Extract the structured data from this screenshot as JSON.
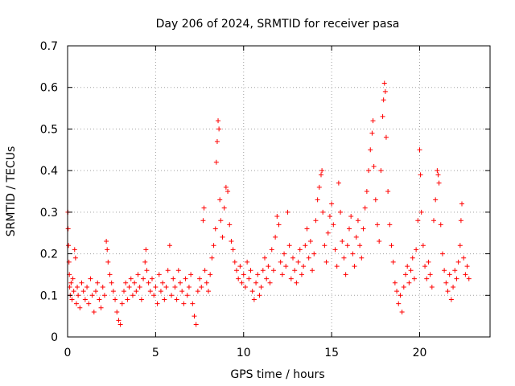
{
  "chart_data": {
    "type": "scatter",
    "title": "Day 206 of 2024, SRMTID for receiver pasa",
    "xlabel": "GPS time / hours",
    "ylabel": "SRMTID / TECUs",
    "xlim": [
      0,
      24
    ],
    "ylim": [
      0,
      0.7
    ],
    "xticks": [
      0,
      5,
      10,
      15,
      20
    ],
    "xtick_labels": [
      "0",
      "5",
      "10",
      "15",
      "20"
    ],
    "yticks": [
      0,
      0.1,
      0.2,
      0.3,
      0.4,
      0.5,
      0.6,
      0.7
    ],
    "ytick_labels": [
      "0",
      "0.1",
      "0.2",
      "0.3",
      "0.4",
      "0.5",
      "0.6",
      "0.7"
    ],
    "grid": true,
    "marker": "+",
    "marker_color": "#ff0000",
    "series": [
      {
        "name": "SRMTID",
        "points": [
          [
            0.02,
            0.3
          ],
          [
            0.03,
            0.26
          ],
          [
            0.05,
            0.22
          ],
          [
            0.08,
            0.18
          ],
          [
            0.1,
            0.15
          ],
          [
            0.12,
            0.12
          ],
          [
            0.15,
            0.1
          ],
          [
            0.2,
            0.13
          ],
          [
            0.25,
            0.09
          ],
          [
            0.3,
            0.14
          ],
          [
            0.35,
            0.11
          ],
          [
            0.4,
            0.21
          ],
          [
            0.45,
            0.19
          ],
          [
            0.5,
            0.08
          ],
          [
            0.55,
            0.12
          ],
          [
            0.6,
            0.1
          ],
          [
            0.7,
            0.07
          ],
          [
            0.8,
            0.13
          ],
          [
            0.9,
            0.11
          ],
          [
            1.0,
            0.09
          ],
          [
            1.1,
            0.12
          ],
          [
            1.2,
            0.08
          ],
          [
            1.3,
            0.14
          ],
          [
            1.4,
            0.1
          ],
          [
            1.5,
            0.06
          ],
          [
            1.6,
            0.11
          ],
          [
            1.7,
            0.13
          ],
          [
            1.8,
            0.09
          ],
          [
            1.9,
            0.07
          ],
          [
            2.0,
            0.12
          ],
          [
            2.1,
            0.1
          ],
          [
            2.2,
            0.23
          ],
          [
            2.25,
            0.21
          ],
          [
            2.3,
            0.18
          ],
          [
            2.4,
            0.15
          ],
          [
            2.5,
            0.13
          ],
          [
            2.6,
            0.11
          ],
          [
            2.7,
            0.09
          ],
          [
            2.8,
            0.06
          ],
          [
            2.9,
            0.04
          ],
          [
            3.0,
            0.03
          ],
          [
            3.1,
            0.08
          ],
          [
            3.2,
            0.11
          ],
          [
            3.3,
            0.13
          ],
          [
            3.4,
            0.09
          ],
          [
            3.5,
            0.12
          ],
          [
            3.6,
            0.14
          ],
          [
            3.7,
            0.1
          ],
          [
            3.8,
            0.13
          ],
          [
            3.9,
            0.11
          ],
          [
            4.0,
            0.15
          ],
          [
            4.1,
            0.12
          ],
          [
            4.2,
            0.09
          ],
          [
            4.3,
            0.14
          ],
          [
            4.4,
            0.18
          ],
          [
            4.45,
            0.21
          ],
          [
            4.5,
            0.16
          ],
          [
            4.6,
            0.13
          ],
          [
            4.7,
            0.11
          ],
          [
            4.8,
            0.14
          ],
          [
            4.9,
            0.1
          ],
          [
            5.0,
            0.12
          ],
          [
            5.1,
            0.08
          ],
          [
            5.2,
            0.15
          ],
          [
            5.3,
            0.11
          ],
          [
            5.4,
            0.13
          ],
          [
            5.5,
            0.09
          ],
          [
            5.6,
            0.12
          ],
          [
            5.7,
            0.16
          ],
          [
            5.8,
            0.22
          ],
          [
            5.9,
            0.1
          ],
          [
            6.0,
            0.14
          ],
          [
            6.1,
            0.12
          ],
          [
            6.2,
            0.09
          ],
          [
            6.3,
            0.16
          ],
          [
            6.4,
            0.13
          ],
          [
            6.5,
            0.11
          ],
          [
            6.6,
            0.08
          ],
          [
            6.7,
            0.14
          ],
          [
            6.8,
            0.1
          ],
          [
            6.9,
            0.12
          ],
          [
            7.0,
            0.15
          ],
          [
            7.1,
            0.08
          ],
          [
            7.2,
            0.05
          ],
          [
            7.3,
            0.03
          ],
          [
            7.4,
            0.11
          ],
          [
            7.5,
            0.14
          ],
          [
            7.6,
            0.12
          ],
          [
            7.7,
            0.28
          ],
          [
            7.75,
            0.31
          ],
          [
            7.8,
            0.16
          ],
          [
            7.9,
            0.13
          ],
          [
            8.0,
            0.11
          ],
          [
            8.1,
            0.15
          ],
          [
            8.2,
            0.19
          ],
          [
            8.3,
            0.22
          ],
          [
            8.4,
            0.26
          ],
          [
            8.45,
            0.42
          ],
          [
            8.5,
            0.47
          ],
          [
            8.55,
            0.52
          ],
          [
            8.6,
            0.5
          ],
          [
            8.65,
            0.33
          ],
          [
            8.7,
            0.28
          ],
          [
            8.8,
            0.24
          ],
          [
            8.9,
            0.31
          ],
          [
            9.0,
            0.36
          ],
          [
            9.1,
            0.35
          ],
          [
            9.2,
            0.27
          ],
          [
            9.3,
            0.23
          ],
          [
            9.4,
            0.21
          ],
          [
            9.5,
            0.18
          ],
          [
            9.6,
            0.16
          ],
          [
            9.7,
            0.14
          ],
          [
            9.8,
            0.17
          ],
          [
            9.9,
            0.13
          ],
          [
            10.0,
            0.15
          ],
          [
            10.1,
            0.12
          ],
          [
            10.2,
            0.18
          ],
          [
            10.3,
            0.14
          ],
          [
            10.4,
            0.16
          ],
          [
            10.5,
            0.11
          ],
          [
            10.6,
            0.09
          ],
          [
            10.7,
            0.13
          ],
          [
            10.8,
            0.15
          ],
          [
            10.9,
            0.1
          ],
          [
            11.0,
            0.12
          ],
          [
            11.1,
            0.16
          ],
          [
            11.2,
            0.19
          ],
          [
            11.3,
            0.14
          ],
          [
            11.4,
            0.17
          ],
          [
            11.5,
            0.13
          ],
          [
            11.6,
            0.21
          ],
          [
            11.7,
            0.16
          ],
          [
            11.8,
            0.24
          ],
          [
            11.9,
            0.29
          ],
          [
            12.0,
            0.27
          ],
          [
            12.1,
            0.18
          ],
          [
            12.2,
            0.15
          ],
          [
            12.3,
            0.2
          ],
          [
            12.4,
            0.17
          ],
          [
            12.5,
            0.3
          ],
          [
            12.6,
            0.22
          ],
          [
            12.7,
            0.14
          ],
          [
            12.8,
            0.19
          ],
          [
            12.9,
            0.16
          ],
          [
            13.0,
            0.13
          ],
          [
            13.1,
            0.18
          ],
          [
            13.2,
            0.21
          ],
          [
            13.3,
            0.15
          ],
          [
            13.4,
            0.17
          ],
          [
            13.5,
            0.22
          ],
          [
            13.6,
            0.26
          ],
          [
            13.7,
            0.19
          ],
          [
            13.8,
            0.23
          ],
          [
            13.9,
            0.16
          ],
          [
            14.0,
            0.2
          ],
          [
            14.1,
            0.28
          ],
          [
            14.2,
            0.33
          ],
          [
            14.3,
            0.36
          ],
          [
            14.4,
            0.39
          ],
          [
            14.45,
            0.4
          ],
          [
            14.5,
            0.3
          ],
          [
            14.6,
            0.22
          ],
          [
            14.7,
            0.18
          ],
          [
            14.8,
            0.25
          ],
          [
            14.9,
            0.29
          ],
          [
            15.0,
            0.32
          ],
          [
            15.1,
            0.27
          ],
          [
            15.2,
            0.21
          ],
          [
            15.3,
            0.17
          ],
          [
            15.4,
            0.37
          ],
          [
            15.5,
            0.3
          ],
          [
            15.6,
            0.23
          ],
          [
            15.7,
            0.19
          ],
          [
            15.8,
            0.15
          ],
          [
            15.9,
            0.22
          ],
          [
            16.0,
            0.26
          ],
          [
            16.1,
            0.29
          ],
          [
            16.2,
            0.2
          ],
          [
            16.3,
            0.17
          ],
          [
            16.4,
            0.24
          ],
          [
            16.5,
            0.28
          ],
          [
            16.6,
            0.22
          ],
          [
            16.7,
            0.19
          ],
          [
            16.8,
            0.26
          ],
          [
            16.9,
            0.31
          ],
          [
            17.0,
            0.35
          ],
          [
            17.1,
            0.4
          ],
          [
            17.2,
            0.45
          ],
          [
            17.3,
            0.49
          ],
          [
            17.35,
            0.52
          ],
          [
            17.4,
            0.41
          ],
          [
            17.5,
            0.33
          ],
          [
            17.6,
            0.27
          ],
          [
            17.7,
            0.23
          ],
          [
            17.8,
            0.4
          ],
          [
            17.9,
            0.53
          ],
          [
            17.95,
            0.57
          ],
          [
            18.0,
            0.61
          ],
          [
            18.05,
            0.59
          ],
          [
            18.1,
            0.48
          ],
          [
            18.2,
            0.35
          ],
          [
            18.3,
            0.27
          ],
          [
            18.4,
            0.22
          ],
          [
            18.5,
            0.18
          ],
          [
            18.6,
            0.13
          ],
          [
            18.7,
            0.11
          ],
          [
            18.8,
            0.08
          ],
          [
            18.9,
            0.1
          ],
          [
            19.0,
            0.06
          ],
          [
            19.1,
            0.12
          ],
          [
            19.2,
            0.15
          ],
          [
            19.3,
            0.17
          ],
          [
            19.4,
            0.13
          ],
          [
            19.5,
            0.16
          ],
          [
            19.6,
            0.19
          ],
          [
            19.7,
            0.14
          ],
          [
            19.8,
            0.21
          ],
          [
            19.9,
            0.28
          ],
          [
            20.0,
            0.45
          ],
          [
            20.05,
            0.39
          ],
          [
            20.1,
            0.3
          ],
          [
            20.2,
            0.22
          ],
          [
            20.3,
            0.17
          ],
          [
            20.4,
            0.14
          ],
          [
            20.5,
            0.18
          ],
          [
            20.6,
            0.15
          ],
          [
            20.7,
            0.12
          ],
          [
            20.8,
            0.28
          ],
          [
            20.9,
            0.33
          ],
          [
            21.0,
            0.4
          ],
          [
            21.05,
            0.39
          ],
          [
            21.1,
            0.37
          ],
          [
            21.2,
            0.27
          ],
          [
            21.3,
            0.2
          ],
          [
            21.4,
            0.16
          ],
          [
            21.5,
            0.13
          ],
          [
            21.6,
            0.11
          ],
          [
            21.7,
            0.15
          ],
          [
            21.8,
            0.09
          ],
          [
            21.9,
            0.12
          ],
          [
            22.0,
            0.16
          ],
          [
            22.1,
            0.14
          ],
          [
            22.2,
            0.18
          ],
          [
            22.3,
            0.22
          ],
          [
            22.35,
            0.28
          ],
          [
            22.4,
            0.32
          ],
          [
            22.5,
            0.19
          ],
          [
            22.6,
            0.15
          ],
          [
            22.7,
            0.17
          ],
          [
            22.8,
            0.14
          ]
        ]
      }
    ]
  }
}
